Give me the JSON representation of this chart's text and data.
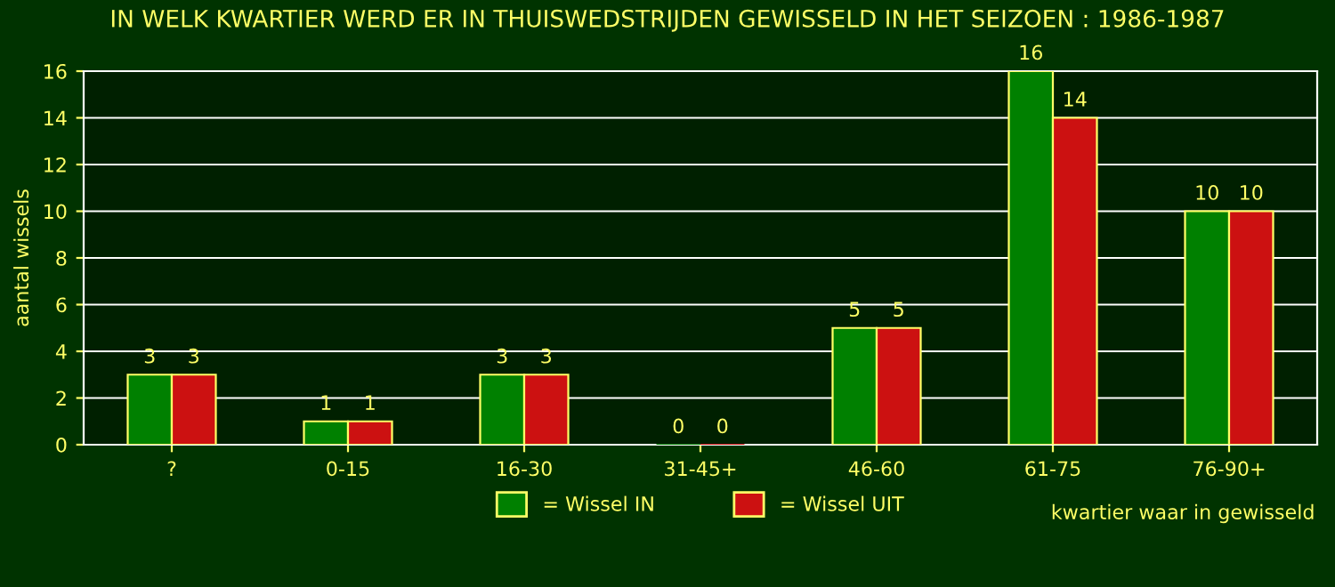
{
  "chart_data": {
    "type": "bar",
    "title": "IN WELK KWARTIER WERD ER IN THUISWEDSTRIJDEN GEWISSELD IN HET SEIZOEN : 1986-1987",
    "xlabel": "kwartier waar in gewisseld",
    "ylabel": "aantal wissels",
    "categories": [
      "?",
      "0-15",
      "16-30",
      "31-45+",
      "46-60",
      "61-75",
      "76-90+"
    ],
    "series": [
      {
        "name": "= Wissel IN",
        "color": "#008000",
        "values": [
          3,
          1,
          3,
          0,
          5,
          16,
          10
        ]
      },
      {
        "name": "= Wissel UIT",
        "color": "#cc1111",
        "values": [
          3,
          1,
          3,
          0,
          5,
          14,
          10
        ]
      }
    ],
    "ylim": [
      0,
      16
    ],
    "yticks": [
      0,
      2,
      4,
      6,
      8,
      10,
      12,
      14,
      16
    ],
    "grid": "y",
    "legend": "bottom",
    "data_labels": true
  }
}
